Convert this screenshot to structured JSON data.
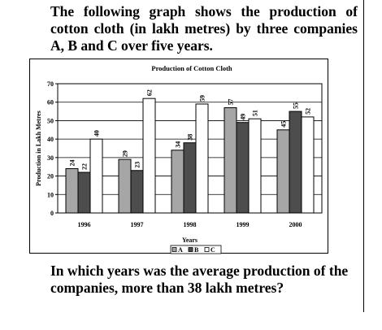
{
  "heading": "The following graph shows the production of cotton cloth (in lakh metres) by three companies A, B and C over five years.",
  "question": "In which years was the average production of the companies, more than 38 lakh metres?",
  "chart_data": {
    "type": "bar",
    "title": "Production of Cotton Cloth",
    "xlabel": "Years",
    "ylabel": "Production in Lakh Metres",
    "categories": [
      "1996",
      "1997",
      "1998",
      "1999",
      "2000"
    ],
    "series": [
      {
        "name": "A",
        "color": "#a6a6a6",
        "values": [
          24,
          29,
          34,
          57,
          45
        ]
      },
      {
        "name": "B",
        "color": "#4d4d4d",
        "values": [
          22,
          23,
          38,
          49,
          55
        ]
      },
      {
        "name": "C",
        "color": "#ffffff",
        "values": [
          40,
          62,
          59,
          51,
          52
        ]
      }
    ],
    "ylim": [
      0,
      70
    ],
    "yticks": [
      0,
      10,
      20,
      30,
      40,
      50,
      60,
      70
    ],
    "grid": true,
    "legend": "bottom"
  }
}
